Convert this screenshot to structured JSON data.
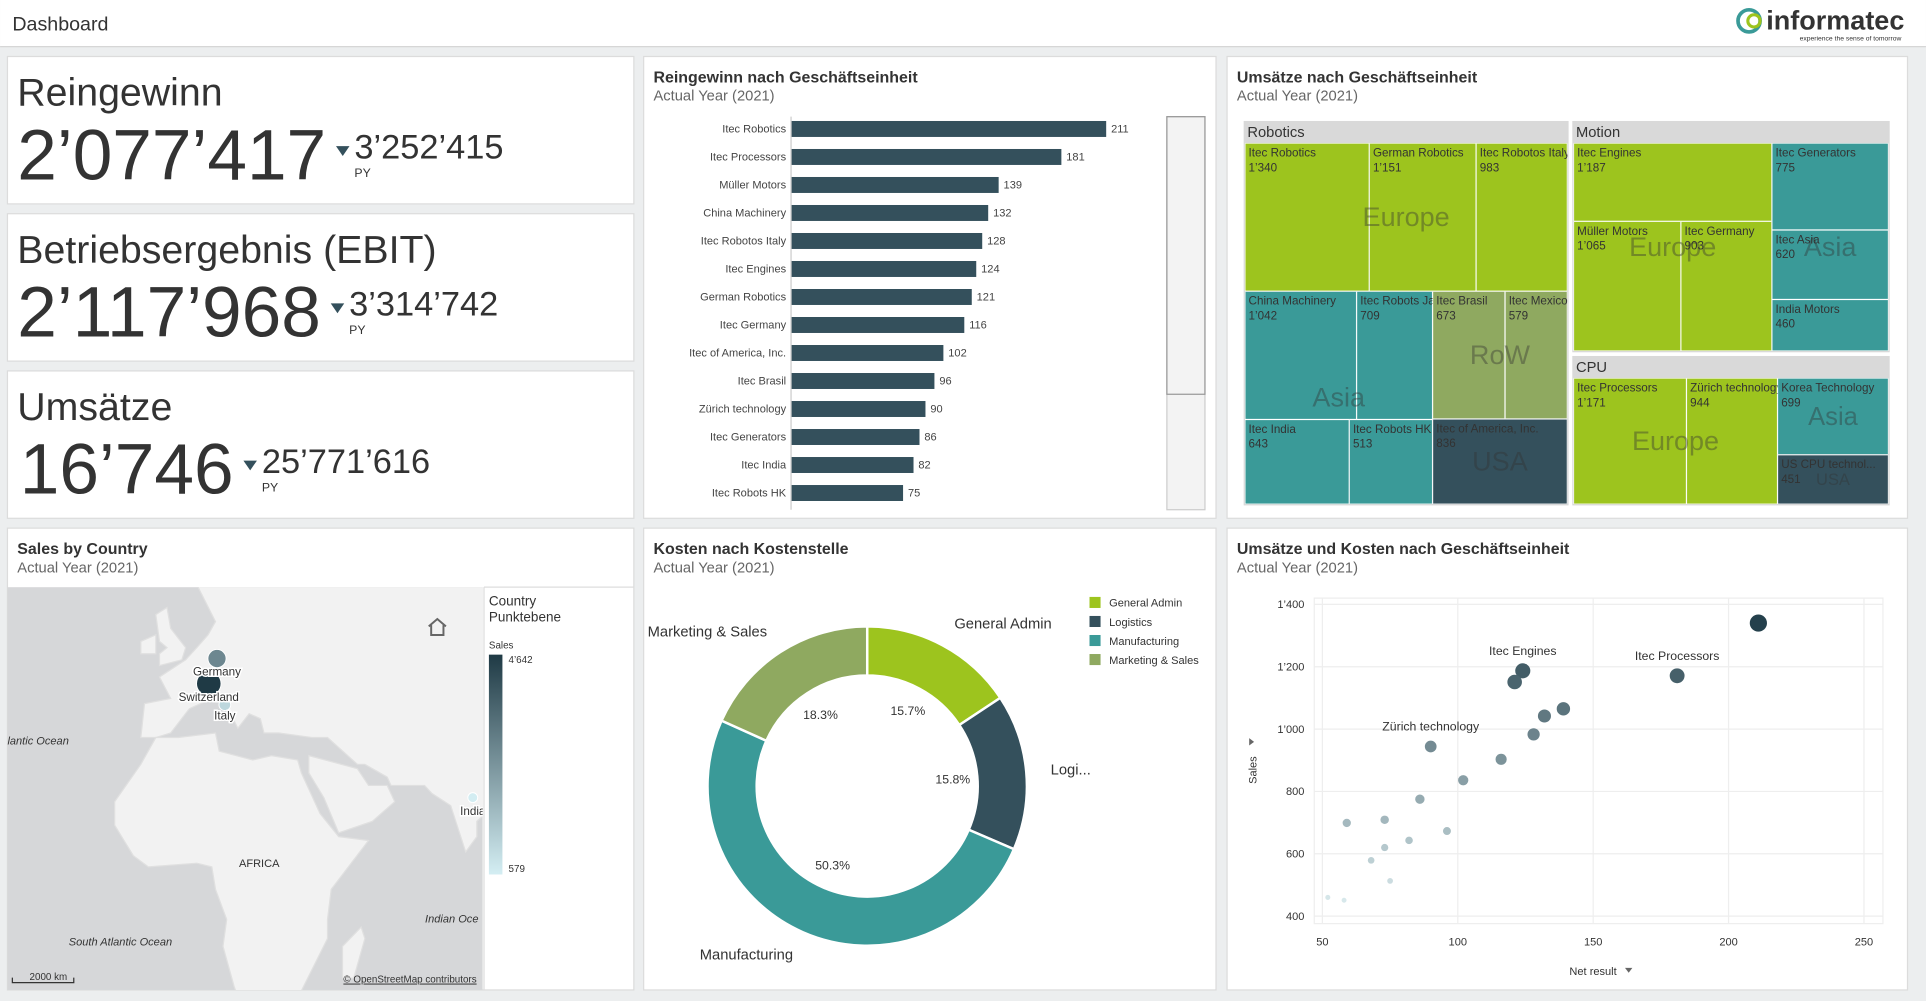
{
  "header": {
    "title": "Dashboard",
    "logo": "informatec",
    "tagline": "experience the sense of tomorrow"
  },
  "kpis": [
    {
      "label": "Reingewinn",
      "value": "2’077’417",
      "py_value": "3’252’415",
      "py_label": "PY"
    },
    {
      "label": "Betriebsergebnis (EBIT)",
      "value": "2’117’968",
      "py_value": "3’314’742",
      "py_label": "PY"
    },
    {
      "label": "Umsätze",
      "value": "16’746",
      "py_value": "25’771’616",
      "py_label": "PY"
    }
  ],
  "chart_data": [
    {
      "type": "bar",
      "title": "Reingewinn nach Geschäftseinheit",
      "subtitle": "Actual Year (2021)",
      "categories": [
        "Itec Robotics",
        "Itec Processors",
        "Müller Motors",
        "China Machinery",
        "Itec Robotos Italy",
        "Itec Engines",
        "German Robotics",
        "Itec Germany",
        "Itec of America, Inc.",
        "Itec Brasil",
        "Zürich technology",
        "Itec Generators",
        "Itec India",
        "Itec Robots HK"
      ],
      "values": [
        211,
        181,
        139,
        132,
        128,
        124,
        121,
        116,
        102,
        96,
        90,
        86,
        82,
        75
      ],
      "color": "#34505c",
      "xlim": [
        0,
        250
      ]
    },
    {
      "type": "treemap",
      "title": "Umsätze nach Geschäftseinheit",
      "subtitle": "Actual Year (2021)",
      "groups": [
        {
          "name": "Robotics",
          "regions": [
            {
              "name": "Europe",
              "color": "#9dc41e",
              "items": [
                {
                  "name": "Itec Robotics",
                  "value": 1340,
                  "value_label": "1’340"
                },
                {
                  "name": "German Robotics",
                  "value": 1151,
                  "value_label": "1’151"
                },
                {
                  "name": "Itec Robotos Italy",
                  "value": 983,
                  "value_label": "983"
                }
              ]
            },
            {
              "name": "Asia",
              "color": "#3a9a98",
              "items": [
                {
                  "name": "China Machinery",
                  "value": 1042,
                  "value_label": "1’042"
                },
                {
                  "name": "Itec Robots Japan",
                  "value": 709,
                  "value_label": "709"
                },
                {
                  "name": "Itec India",
                  "value": 643,
                  "value_label": "643"
                },
                {
                  "name": "Itec Robots HK",
                  "value": 513,
                  "value_label": "513"
                }
              ]
            },
            {
              "name": "RoW",
              "color": "#8fa960",
              "items": [
                {
                  "name": "Itec Brasil",
                  "value": 673,
                  "value_label": "673"
                },
                {
                  "name": "Itec Mexico",
                  "value": 579,
                  "value_label": "579"
                }
              ]
            },
            {
              "name": "USA",
              "color": "#34505c",
              "items": [
                {
                  "name": "Itec of America, Inc.",
                  "value": 836,
                  "value_label": "836"
                }
              ]
            }
          ]
        },
        {
          "name": "Motion",
          "regions": [
            {
              "name": "Europe",
              "color": "#9dc41e",
              "items": [
                {
                  "name": "Itec Engines",
                  "value": 1187,
                  "value_label": "1’187"
                },
                {
                  "name": "Müller Motors",
                  "value": 1065,
                  "value_label": "1’065"
                },
                {
                  "name": "Itec Germany",
                  "value": 903,
                  "value_label": "903"
                }
              ]
            },
            {
              "name": "Asia",
              "color": "#3a9a98",
              "items": [
                {
                  "name": "Itec Generators",
                  "value": 775,
                  "value_label": "775"
                },
                {
                  "name": "Itec Asia",
                  "value": 620,
                  "value_label": "620"
                },
                {
                  "name": "India Motors",
                  "value": 460,
                  "value_label": "460"
                }
              ]
            }
          ]
        },
        {
          "name": "CPU",
          "regions": [
            {
              "name": "Europe",
              "color": "#9dc41e",
              "items": [
                {
                  "name": "Itec Processors",
                  "value": 1171,
                  "value_label": "1’171"
                },
                {
                  "name": "Zürich technology",
                  "value": 944,
                  "value_label": "944"
                }
              ]
            },
            {
              "name": "Asia",
              "color": "#3a9a98",
              "items": [
                {
                  "name": "Korea Technology",
                  "value": 699,
                  "value_label": "699"
                }
              ]
            },
            {
              "name": "USA",
              "color": "#34505c",
              "items": [
                {
                  "name": "US CPU technol...",
                  "value": 451,
                  "value_label": "451"
                }
              ]
            }
          ]
        }
      ]
    },
    {
      "type": "map",
      "title": "Sales by Country",
      "subtitle": "Actual Year (2021)",
      "legend_title": "Country",
      "legend_subtitle": "Punktebene",
      "color_scale": {
        "label": "Sales",
        "min": 579,
        "max": 4642,
        "max_label": "4’642",
        "colors": [
          "#d4eef3",
          "#1f3a45"
        ]
      },
      "points": [
        {
          "name": "Germany",
          "lon": 10.4,
          "lat": 51.2,
          "value": 2900
        },
        {
          "name": "Switzerland",
          "lon": 8.2,
          "lat": 46.8,
          "value": 4642
        },
        {
          "name": "Italy",
          "lon": 12.5,
          "lat": 42.8,
          "value": 1100
        },
        {
          "name": "India",
          "lon": 78.9,
          "lat": 22.0,
          "value": 600
        }
      ],
      "place_labels": [
        "lantic Ocean",
        "AFRICA",
        "Indian Oce",
        "South Atlantic Ocean"
      ],
      "scale_bar": "2000 km",
      "attribution": "© OpenStreetMap contributors"
    },
    {
      "type": "donut",
      "title": "Kosten nach Kostenstelle",
      "subtitle": "Actual Year (2021)",
      "categories": [
        "General Admin",
        "Logistics",
        "Manufacturing",
        "Marketing & Sales"
      ],
      "values": [
        15.7,
        15.8,
        50.3,
        18.3
      ],
      "value_labels": [
        "15.7%",
        "15.8%",
        "50.3%",
        "18.3%"
      ],
      "outer_labels": [
        "General Admin",
        "Logi...",
        "Manufacturing",
        "Marketing & Sales"
      ],
      "colors": [
        "#9dc41e",
        "#34505c",
        "#3a9a98",
        "#8fa960"
      ]
    },
    {
      "type": "scatter",
      "title": "Umsätze und Kosten nach Geschäftseinheit",
      "subtitle": "Actual Year (2021)",
      "x": [
        211,
        181,
        124,
        121,
        139,
        132,
        128,
        90,
        116,
        102,
        86,
        96,
        59,
        73,
        82,
        73,
        68,
        75,
        52,
        58
      ],
      "y": [
        1340,
        1171,
        1187,
        1151,
        1065,
        1042,
        983,
        944,
        903,
        836,
        775,
        673,
        699,
        709,
        643,
        620,
        579,
        513,
        460,
        451
      ],
      "point_labels": [
        null,
        "Itec Processors",
        "Itec Engines",
        null,
        null,
        null,
        null,
        "Zürich technology",
        null,
        null,
        null,
        null,
        null,
        null,
        null,
        null,
        null,
        null,
        null,
        null
      ],
      "xlabel": "Net result",
      "ylabel": "Sales",
      "xlim": [
        47,
        257
      ],
      "ylim": [
        376,
        1420
      ],
      "xticks": [
        50,
        100,
        150,
        200,
        250
      ],
      "yticks": [
        400,
        600,
        800,
        {
          "value": 1000,
          "label": "1’000"
        },
        {
          "value": 1200,
          "label": "1’200"
        },
        {
          "value": 1400,
          "label": "1’400"
        }
      ],
      "grid": true,
      "colors": [
        "#d7e8eb",
        "#24404c"
      ]
    }
  ]
}
